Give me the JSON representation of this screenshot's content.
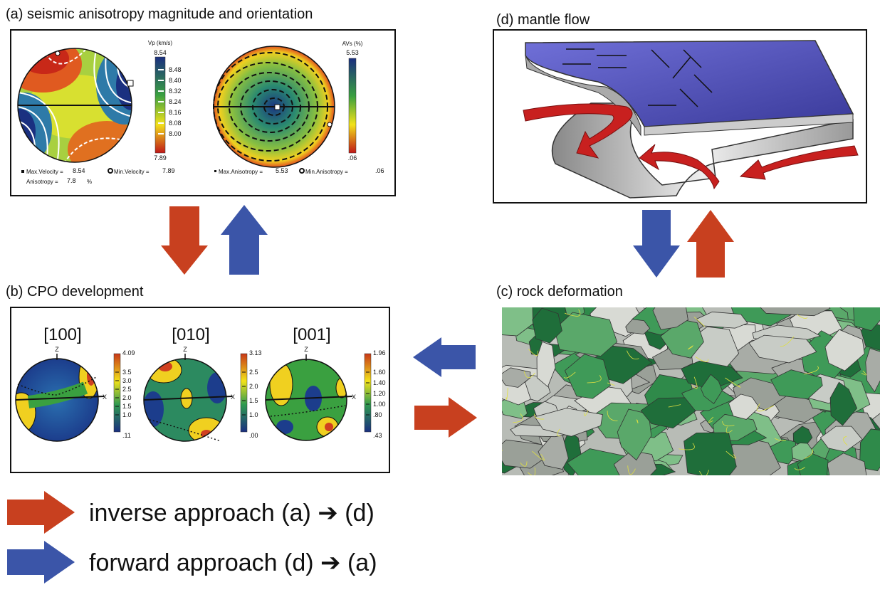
{
  "panel_a": {
    "title": "(a) seismic anisotropy magnitude and orientation",
    "vp": {
      "label": "Vp (km/s)",
      "max": "8.54",
      "ticks": [
        "8.48",
        "8.40",
        "8.32",
        "8.24",
        "8.16",
        "8.08",
        "8.00"
      ],
      "min": "7.89"
    },
    "vp_stats": {
      "max_label": "Max.Velocity =",
      "max_value": "8.54",
      "min_label": "Min.Velocity =",
      "min_value": "7.89",
      "aniso_label": "Anisotropy =",
      "aniso_value": "7.8",
      "aniso_unit": "%"
    },
    "avs": {
      "label": "AVs (%)",
      "max": "5.53",
      "min": ".06"
    },
    "avs_stats": {
      "max_label": "Max.Anisotropy =",
      "max_value": "5.53",
      "min_label": "Min.Anisotropy =",
      "min_value": ".06"
    }
  },
  "panel_b": {
    "title": "(b) CPO development",
    "nets": [
      {
        "label": "[100]",
        "z": "Z",
        "x": "X",
        "max": "4.09",
        "ticks": [
          "3.5",
          "3.0",
          "2.5",
          "2.0",
          "1.5",
          "1.0"
        ],
        "min": ".11"
      },
      {
        "label": "[010]",
        "z": "Z",
        "x": "X",
        "max": "3.13",
        "ticks": [
          "2.5",
          "2.0",
          "1.5",
          "1.0"
        ],
        "min": ".00"
      },
      {
        "label": "[001]",
        "z": "Z",
        "x": "X",
        "max": "1.96",
        "ticks": [
          "1.60",
          "1.40",
          "1.20",
          "1.00",
          ".80"
        ],
        "min": ".43"
      }
    ]
  },
  "panel_c": {
    "title": "(c) rock deformation"
  },
  "panel_d": {
    "title": "(d) mantle flow"
  },
  "legend": {
    "inverse": "inverse approach (a) ➔ (d)",
    "forward": "forward approach (d) ➔ (a)"
  }
}
